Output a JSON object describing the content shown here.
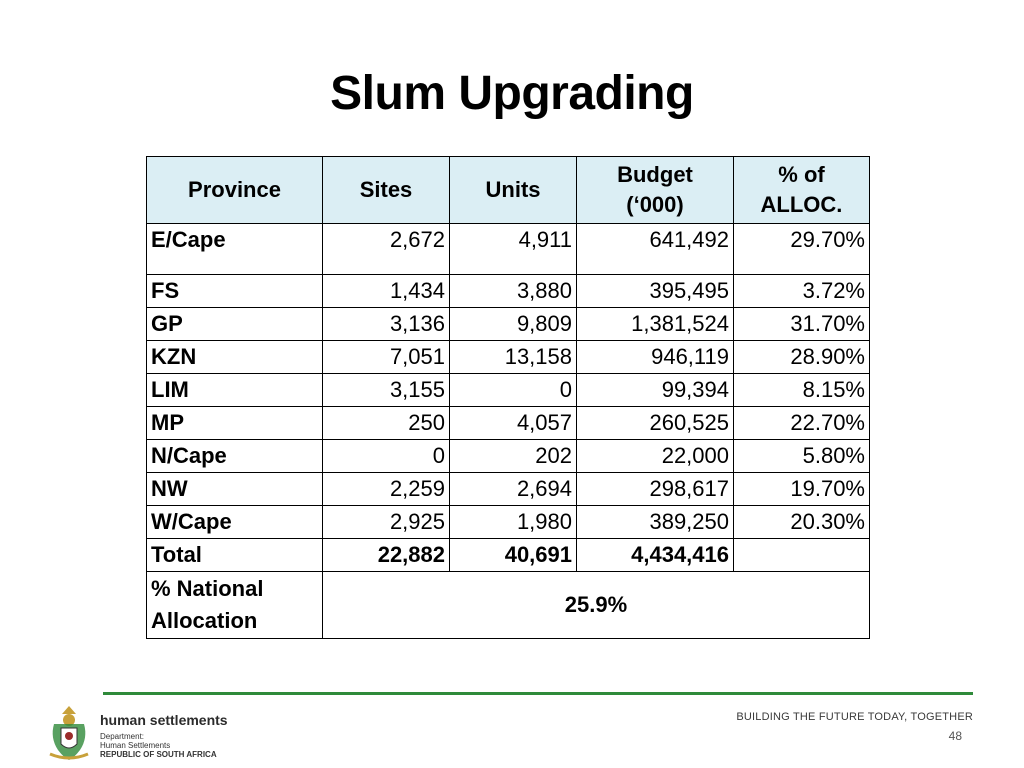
{
  "title": "Slum Upgrading",
  "table": {
    "headers": [
      "Province",
      "Sites",
      "Units",
      "Budget\n(‘000)",
      "% of\nALLOC."
    ],
    "rows": [
      {
        "province": "E/Cape",
        "sites": "2,672",
        "units": "4,911",
        "budget": "641,492",
        "alloc": "29.70%"
      },
      {
        "province": "FS",
        "sites": "1,434",
        "units": "3,880",
        "budget": "395,495",
        "alloc": "3.72%"
      },
      {
        "province": "GP",
        "sites": "3,136",
        "units": "9,809",
        "budget": "1,381,524",
        "alloc": "31.70%"
      },
      {
        "province": "KZN",
        "sites": "7,051",
        "units": "13,158",
        "budget": "946,119",
        "alloc": "28.90%"
      },
      {
        "province": "LIM",
        "sites": "3,155",
        "units": "0",
        "budget": "99,394",
        "alloc": "8.15%"
      },
      {
        "province": "MP",
        "sites": "250",
        "units": "4,057",
        "budget": "260,525",
        "alloc": "22.70%"
      },
      {
        "province": "N/Cape",
        "sites": "0",
        "units": "202",
        "budget": "22,000",
        "alloc": "5.80%"
      },
      {
        "province": "NW",
        "sites": "2,259",
        "units": "2,694",
        "budget": "298,617",
        "alloc": "19.70%"
      },
      {
        "province": "W/Cape",
        "sites": "2,925",
        "units": "1,980",
        "budget": "389,250",
        "alloc": "20.30%"
      }
    ],
    "total": {
      "label": "Total",
      "sites": "22,882",
      "units": "40,691",
      "budget": "4,434,416",
      "alloc": ""
    },
    "national": {
      "label": "% National Allocation",
      "value": "25.9%"
    }
  },
  "footer": {
    "brand_name": "human settlements",
    "dept_line1": "Department:",
    "dept_line2": "Human Settlements",
    "dept_line3": "REPUBLIC OF SOUTH AFRICA",
    "tagline": "BUILDING THE FUTURE TODAY, TOGETHER",
    "page_number": "48"
  },
  "colors": {
    "header_bg": "#dbeef4",
    "footer_line": "#2f8a3a"
  }
}
